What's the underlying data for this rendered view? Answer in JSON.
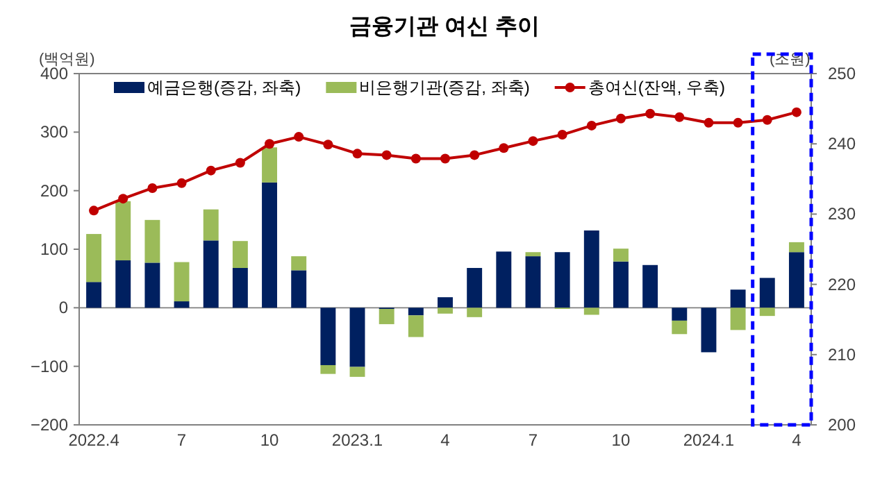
{
  "chart_data": {
    "type": "bar",
    "title": "금융기관 여신 추이",
    "ylabel": "(백억원)",
    "y2label": "(조원)",
    "stacked": true,
    "legend": "top",
    "marker": "circle",
    "categories": [
      "2022.4",
      null,
      null,
      "7",
      null,
      null,
      "10",
      null,
      null,
      "2023.1",
      null,
      null,
      "4",
      null,
      null,
      "7",
      null,
      null,
      "10",
      null,
      null,
      "2024.1",
      null,
      null,
      "4"
    ],
    "series": [
      {
        "name": "예금은행(증감, 좌축)",
        "color": "#002060",
        "values": [
          44,
          81,
          77,
          11,
          115,
          68,
          214,
          64,
          -98,
          -101,
          -2,
          -13,
          18,
          68,
          96,
          88,
          95,
          132,
          79,
          73,
          -22,
          -76,
          31,
          51,
          95
        ]
      },
      {
        "name": "비은행기관(증감, 좌축)",
        "color": "#9bbb59",
        "values": [
          82,
          101,
          73,
          67,
          53,
          46,
          60,
          24,
          -15,
          -17,
          -26,
          -37,
          -10,
          -16,
          0,
          7,
          -2,
          -12,
          22,
          0,
          -23,
          0,
          -38,
          -14,
          17
        ]
      },
      {
        "name": "총여신(잔액, 우축)",
        "type": "line",
        "axis": "y2",
        "color": "#c00000",
        "values": [
          230.5,
          232.2,
          233.7,
          234.4,
          236.2,
          237.3,
          240.0,
          241.0,
          239.9,
          238.6,
          238.4,
          237.9,
          237.9,
          238.4,
          239.4,
          240.4,
          241.3,
          242.6,
          243.6,
          244.3,
          243.8,
          243.0,
          243.0,
          243.4,
          244.5
        ]
      }
    ],
    "ylim": [
      -200,
      400
    ],
    "yticks": [
      -200,
      -100,
      0,
      100,
      200,
      300,
      400
    ],
    "y2lim": [
      200,
      250
    ],
    "y2ticks": [
      200,
      210,
      220,
      230,
      240,
      250
    ]
  }
}
